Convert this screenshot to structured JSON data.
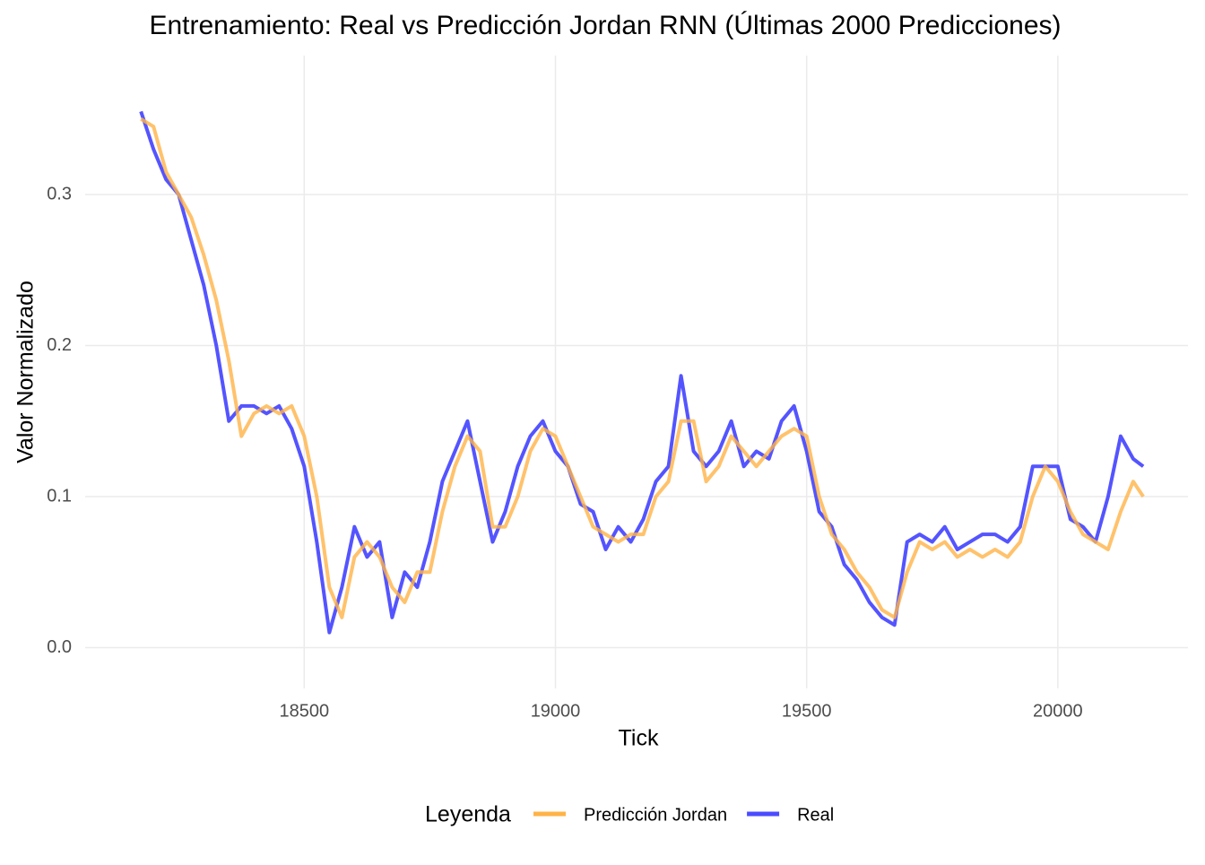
{
  "chart_data": {
    "type": "line",
    "title": "Entrenamiento: Real vs Predicción Jordan RNN (Últimas 2000 Predicciones)",
    "x_label": "Tick",
    "y_label": "Valor Normalizado",
    "legend_title": "Leyenda",
    "legend_position": "bottom",
    "grid": true,
    "x": [
      18175,
      18200,
      18225,
      18250,
      18275,
      18300,
      18325,
      18350,
      18375,
      18400,
      18425,
      18450,
      18475,
      18500,
      18525,
      18550,
      18575,
      18600,
      18625,
      18650,
      18675,
      18700,
      18725,
      18750,
      18775,
      18800,
      18825,
      18850,
      18875,
      18900,
      18925,
      18950,
      18975,
      19000,
      19025,
      19050,
      19075,
      19100,
      19125,
      19150,
      19175,
      19200,
      19225,
      19250,
      19275,
      19300,
      19325,
      19350,
      19375,
      19400,
      19425,
      19450,
      19475,
      19500,
      19525,
      19550,
      19575,
      19600,
      19625,
      19650,
      19675,
      19700,
      19725,
      19750,
      19775,
      19800,
      19825,
      19850,
      19875,
      19900,
      19925,
      19950,
      19975,
      20000,
      20025,
      20050,
      20075,
      20100,
      20125,
      20150,
      20170
    ],
    "series": [
      {
        "name": "Predicción Jordan",
        "color": "#ffb347",
        "values": [
          0.35,
          0.345,
          0.315,
          0.3,
          0.285,
          0.26,
          0.23,
          0.19,
          0.14,
          0.155,
          0.16,
          0.155,
          0.16,
          0.14,
          0.1,
          0.04,
          0.02,
          0.06,
          0.07,
          0.06,
          0.04,
          0.03,
          0.05,
          0.05,
          0.09,
          0.12,
          0.14,
          0.13,
          0.08,
          0.08,
          0.1,
          0.13,
          0.145,
          0.14,
          0.12,
          0.1,
          0.08,
          0.075,
          0.07,
          0.075,
          0.075,
          0.1,
          0.11,
          0.15,
          0.15,
          0.11,
          0.12,
          0.14,
          0.13,
          0.12,
          0.13,
          0.14,
          0.145,
          0.14,
          0.1,
          0.075,
          0.065,
          0.05,
          0.04,
          0.025,
          0.02,
          0.05,
          0.07,
          0.065,
          0.07,
          0.06,
          0.065,
          0.06,
          0.065,
          0.06,
          0.07,
          0.1,
          0.12,
          0.11,
          0.09,
          0.075,
          0.07,
          0.065,
          0.09,
          0.11,
          0.1
        ]
      },
      {
        "name": "Real",
        "color": "#4b4bff",
        "values": [
          0.355,
          0.33,
          0.31,
          0.3,
          0.27,
          0.24,
          0.2,
          0.15,
          0.16,
          0.16,
          0.155,
          0.16,
          0.145,
          0.12,
          0.07,
          0.01,
          0.04,
          0.08,
          0.06,
          0.07,
          0.02,
          0.05,
          0.04,
          0.07,
          0.11,
          0.13,
          0.15,
          0.11,
          0.07,
          0.09,
          0.12,
          0.14,
          0.15,
          0.13,
          0.12,
          0.095,
          0.09,
          0.065,
          0.08,
          0.07,
          0.085,
          0.11,
          0.12,
          0.18,
          0.13,
          0.12,
          0.13,
          0.15,
          0.12,
          0.13,
          0.125,
          0.15,
          0.16,
          0.13,
          0.09,
          0.08,
          0.055,
          0.045,
          0.03,
          0.02,
          0.015,
          0.07,
          0.075,
          0.07,
          0.08,
          0.065,
          0.07,
          0.075,
          0.075,
          0.07,
          0.08,
          0.12,
          0.12,
          0.12,
          0.085,
          0.08,
          0.07,
          0.1,
          0.14,
          0.125,
          0.12
        ]
      }
    ],
    "xlim": [
      18064,
      20259
    ],
    "xticks": [
      18500,
      19000,
      19500,
      20000
    ],
    "ylim": [
      -0.027,
      0.392
    ],
    "yticks": [
      {
        "value": 0,
        "label": "0.0"
      },
      0.1,
      0.2,
      0.3
    ]
  }
}
